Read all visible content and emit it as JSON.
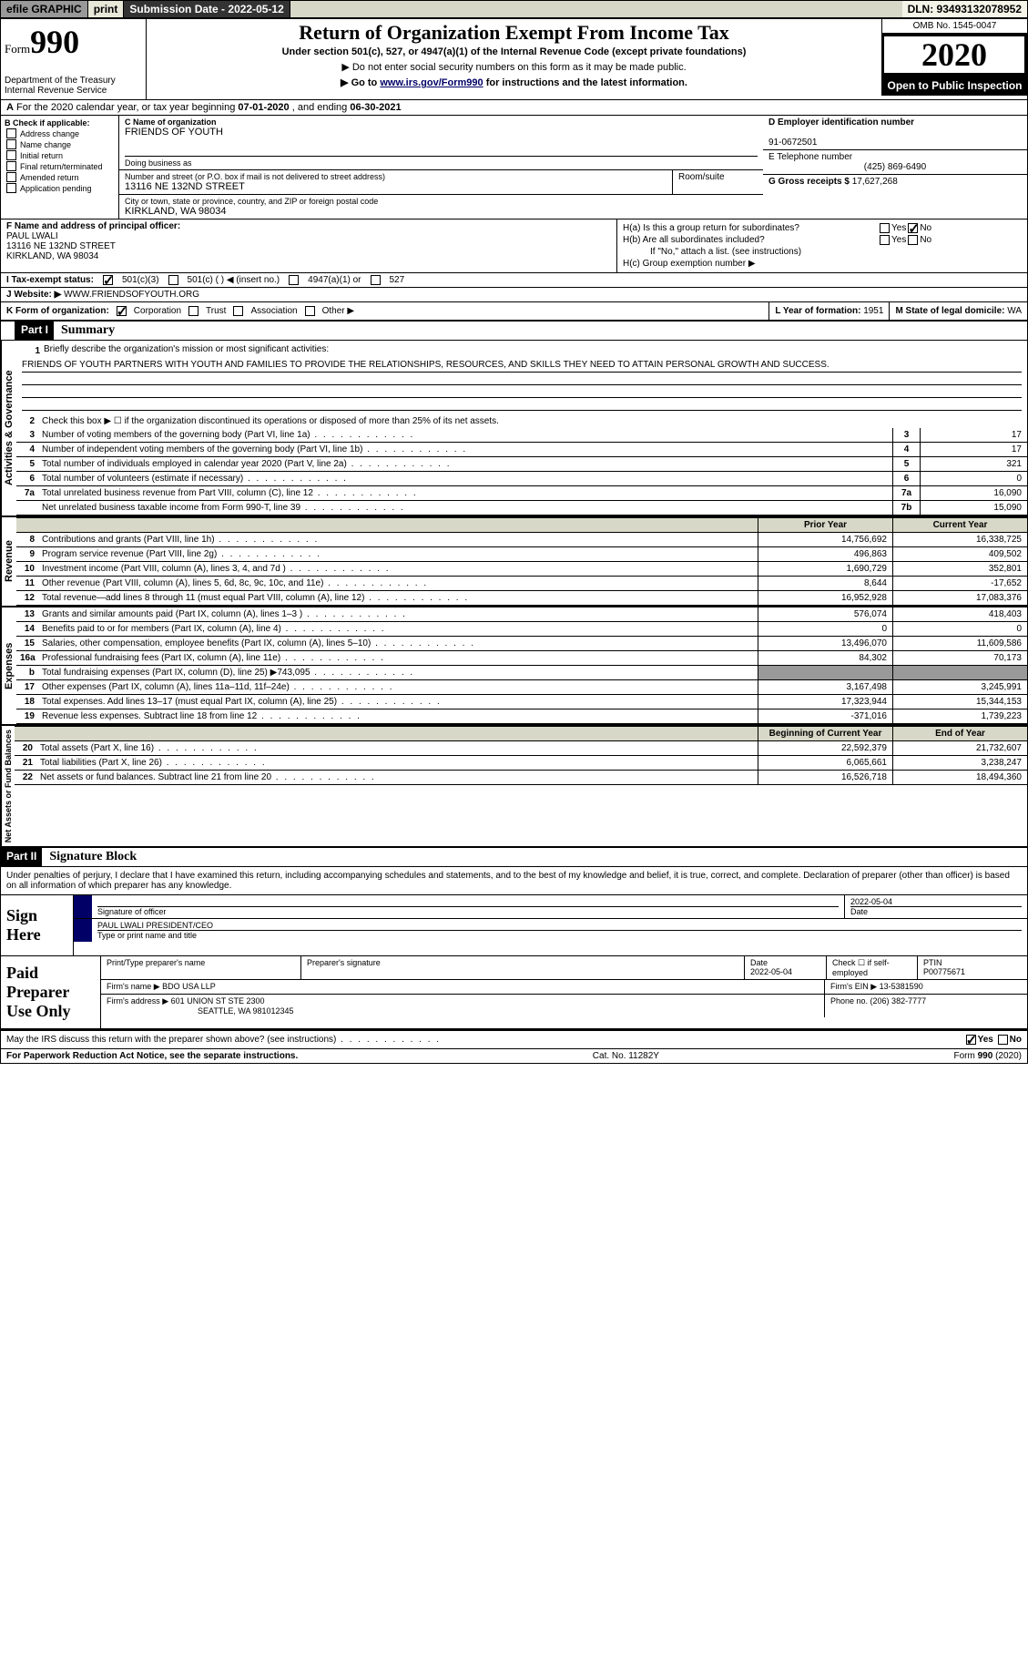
{
  "top_bar": {
    "efile": "efile GRAPHIC",
    "print": "print",
    "sub_date_label": "Submission Date - ",
    "sub_date": "2022-05-12",
    "dln": "DLN: 93493132078952"
  },
  "header": {
    "form_prefix": "Form",
    "form_number": "990",
    "dept": "Department of the Treasury\nInternal Revenue Service",
    "title": "Return of Organization Exempt From Income Tax",
    "sub1": "Under section 501(c), 527, or 4947(a)(1) of the Internal Revenue Code (except private foundations)",
    "sub2": "▶ Do not enter social security numbers on this form as it may be made public.",
    "sub3_pre": "▶ Go to ",
    "sub3_link": "www.irs.gov/Form990",
    "sub3_post": " for instructions and the latest information.",
    "omb": "OMB No. 1545-0047",
    "year": "2020",
    "open_public": "Open to Public Inspection"
  },
  "row_a": {
    "pre": "A",
    "text": "For the 2020 calendar year, or tax year beginning ",
    "begin": "07-01-2020",
    "mid": " , and ending ",
    "end": "06-30-2021"
  },
  "col_b": {
    "header": "B Check if applicable:",
    "items": [
      "Address change",
      "Name change",
      "Initial return",
      "Final return/terminated",
      "Amended return",
      "Application pending"
    ]
  },
  "col_c": {
    "name_label": "C Name of organization",
    "name": "FRIENDS OF YOUTH",
    "dba_label": "Doing business as",
    "dba": "",
    "street_label": "Number and street (or P.O. box if mail is not delivered to street address)",
    "street": "13116 NE 132ND STREET",
    "room_label": "Room/suite",
    "city_label": "City or town, state or province, country, and ZIP or foreign postal code",
    "city": "KIRKLAND, WA  98034"
  },
  "col_de": {
    "d_label": "D Employer identification number",
    "d_val": "91-0672501",
    "e_label": "E Telephone number",
    "e_val": "(425) 869-6490",
    "g_label": "G Gross receipts $ ",
    "g_val": "17,627,268"
  },
  "row_f": {
    "label": "F Name and address of principal officer:",
    "name": "PAUL LWALI",
    "street": "13116 NE 132ND STREET",
    "city": "KIRKLAND, WA  98034"
  },
  "row_h": {
    "ha_label": "H(a)  Is this a group return for subordinates?",
    "hb_label": "H(b)  Are all subordinates included?",
    "hb_note": "If \"No,\" attach a list. (see instructions)",
    "hc_label": "H(c)  Group exemption number ▶",
    "yes": "Yes",
    "no": "No"
  },
  "row_i": {
    "label": "I  Tax-exempt status:",
    "o1": "501(c)(3)",
    "o2": "501(c) (  ) ◀ (insert no.)",
    "o3": "4947(a)(1) or",
    "o4": "527"
  },
  "row_j": {
    "label": "J  Website: ▶",
    "val": "WWW.FRIENDSOFYOUTH.ORG"
  },
  "row_k": {
    "label": "K Form of organization:",
    "corp": "Corporation",
    "trust": "Trust",
    "assoc": "Association",
    "other": "Other ▶",
    "l_label": "L Year of formation: ",
    "l_val": "1951",
    "m_label": "M State of legal domicile: ",
    "m_val": "WA"
  },
  "part1": {
    "header": "Part I",
    "title": "Summary",
    "vert_label_1": "Activities & Governance",
    "line1": "Briefly describe the organization's mission or most significant activities:",
    "mission": "FRIENDS OF YOUTH PARTNERS WITH YOUTH AND FAMILIES TO PROVIDE THE RELATIONSHIPS, RESOURCES, AND SKILLS THEY NEED TO ATTAIN PERSONAL GROWTH AND SUCCESS.",
    "line2": "Check this box ▶ ☐  if the organization discontinued its operations or disposed of more than 25% of its net assets.",
    "line3": "Number of voting members of the governing body (Part VI, line 1a)",
    "line4": "Number of independent voting members of the governing body (Part VI, line 1b)",
    "line5": "Total number of individuals employed in calendar year 2020 (Part V, line 2a)",
    "line6": "Total number of volunteers (estimate if necessary)",
    "line7a": "Total unrelated business revenue from Part VIII, column (C), line 12",
    "line7b": "Net unrelated business taxable income from Form 990-T, line 39",
    "vals": {
      "3": "17",
      "4": "17",
      "5": "321",
      "6": "0",
      "7a": "16,090",
      "7b": "15,090"
    }
  },
  "revenue": {
    "vert": "Revenue",
    "prior_header": "Prior Year",
    "current_header": "Current Year",
    "lines": [
      {
        "n": "8",
        "lbl": "Contributions and grants (Part VIII, line 1h)",
        "py": "14,756,692",
        "cy": "16,338,725"
      },
      {
        "n": "9",
        "lbl": "Program service revenue (Part VIII, line 2g)",
        "py": "496,863",
        "cy": "409,502"
      },
      {
        "n": "10",
        "lbl": "Investment income (Part VIII, column (A), lines 3, 4, and 7d )",
        "py": "1,690,729",
        "cy": "352,801"
      },
      {
        "n": "11",
        "lbl": "Other revenue (Part VIII, column (A), lines 5, 6d, 8c, 9c, 10c, and 11e)",
        "py": "8,644",
        "cy": "-17,652"
      },
      {
        "n": "12",
        "lbl": "Total revenue—add lines 8 through 11 (must equal Part VIII, column (A), line 12)",
        "py": "16,952,928",
        "cy": "17,083,376"
      }
    ]
  },
  "expenses": {
    "vert": "Expenses",
    "lines": [
      {
        "n": "13",
        "lbl": "Grants and similar amounts paid (Part IX, column (A), lines 1–3 )",
        "py": "576,074",
        "cy": "418,403"
      },
      {
        "n": "14",
        "lbl": "Benefits paid to or for members (Part IX, column (A), line 4)",
        "py": "0",
        "cy": "0"
      },
      {
        "n": "15",
        "lbl": "Salaries, other compensation, employee benefits (Part IX, column (A), lines 5–10)",
        "py": "13,496,070",
        "cy": "11,609,586"
      },
      {
        "n": "16a",
        "lbl": "Professional fundraising fees (Part IX, column (A), line 11e)",
        "py": "84,302",
        "cy": "70,173"
      },
      {
        "n": "b",
        "lbl": "Total fundraising expenses (Part IX, column (D), line 25) ▶743,095",
        "py": "",
        "cy": "",
        "shaded": true,
        "indent": true
      },
      {
        "n": "17",
        "lbl": "Other expenses (Part IX, column (A), lines 11a–11d, 11f–24e)",
        "py": "3,167,498",
        "cy": "3,245,991"
      },
      {
        "n": "18",
        "lbl": "Total expenses. Add lines 13–17 (must equal Part IX, column (A), line 25)",
        "py": "17,323,944",
        "cy": "15,344,153"
      },
      {
        "n": "19",
        "lbl": "Revenue less expenses. Subtract line 18 from line 12",
        "py": "-371,016",
        "cy": "1,739,223"
      }
    ]
  },
  "net_assets": {
    "vert": "Net Assets or Fund Balances",
    "boy_header": "Beginning of Current Year",
    "eoy_header": "End of Year",
    "lines": [
      {
        "n": "20",
        "lbl": "Total assets (Part X, line 16)",
        "py": "22,592,379",
        "cy": "21,732,607"
      },
      {
        "n": "21",
        "lbl": "Total liabilities (Part X, line 26)",
        "py": "6,065,661",
        "cy": "3,238,247"
      },
      {
        "n": "22",
        "lbl": "Net assets or fund balances. Subtract line 21 from line 20",
        "py": "16,526,718",
        "cy": "18,494,360"
      }
    ]
  },
  "part2": {
    "header": "Part II",
    "title": "Signature Block",
    "penalties": "Under penalties of perjury, I declare that I have examined this return, including accompanying schedules and statements, and to the best of my knowledge and belief, it is true, correct, and complete. Declaration of preparer (other than officer) is based on all information of which preparer has any knowledge."
  },
  "sign": {
    "left": "Sign Here",
    "sig_label": "Signature of officer",
    "date_label": "Date",
    "date": "2022-05-04",
    "name": "PAUL LWALI  PRESIDENT/CEO",
    "name_label": "Type or print name and title"
  },
  "paid": {
    "left": "Paid Preparer Use Only",
    "r1c1": "Print/Type preparer's name",
    "r1c2": "Preparer's signature",
    "r1c3_label": "Date",
    "r1c3": "2022-05-04",
    "r1c4": "Check ☐ if self-employed",
    "r1c5_label": "PTIN",
    "r1c5": "P00775671",
    "r2_label": "Firm's name    ▶",
    "r2_val": "BDO USA LLP",
    "r2_ein_label": "Firm's EIN ▶",
    "r2_ein": "13-5381590",
    "r3_label": "Firm's address ▶",
    "r3_val": "601 UNION ST STE 2300",
    "r3_val2": "SEATTLE, WA  981012345",
    "r3_phone_label": "Phone no. ",
    "r3_phone": "(206) 382-7777"
  },
  "may_discuss": "May the IRS discuss this return with the preparer shown above? (see instructions)",
  "footer": {
    "left": "For Paperwork Reduction Act Notice, see the separate instructions.",
    "mid": "Cat. No. 11282Y",
    "right": "Form 990 (2020)"
  },
  "colors": {
    "background": "#ffffff",
    "topbar_bg": "#d8d8c8",
    "dark_bg": "#333333",
    "fin_header_bg": "#d8d8c8",
    "shaded": "#999999",
    "link": "#000066",
    "arrow_bg": "#000066"
  }
}
